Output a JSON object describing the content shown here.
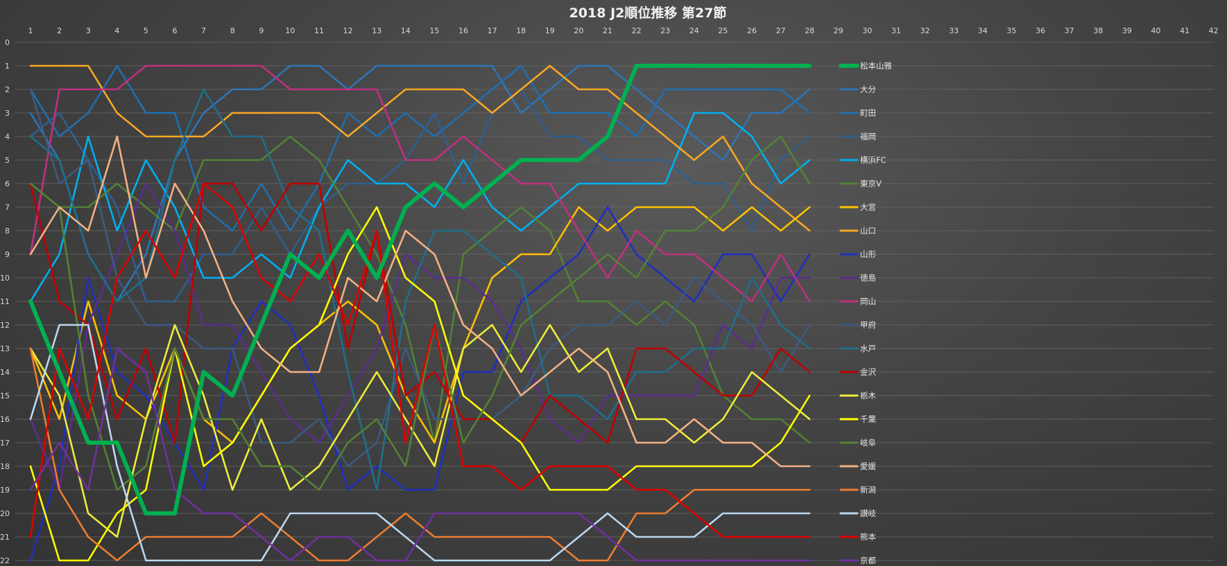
{
  "chart_data": {
    "type": "line",
    "title": "2018 J2順位推移 第27節",
    "x_ticks": [
      1,
      2,
      3,
      4,
      5,
      6,
      7,
      8,
      9,
      10,
      11,
      12,
      13,
      14,
      15,
      16,
      17,
      18,
      19,
      20,
      21,
      22,
      23,
      24,
      25,
      26,
      27,
      28,
      29,
      30,
      31,
      32,
      33,
      34,
      35,
      36,
      37,
      38,
      39,
      40,
      41,
      42
    ],
    "y_ticks": [
      0,
      1,
      2,
      3,
      4,
      5,
      6,
      7,
      8,
      9,
      10,
      11,
      12,
      13,
      14,
      15,
      16,
      17,
      18,
      19,
      20,
      21,
      22
    ],
    "xlim": [
      1,
      42
    ],
    "ylim": [
      0,
      22
    ],
    "y_inverted": true,
    "grid": true,
    "legend_position": "right",
    "x": [
      1,
      2,
      3,
      4,
      5,
      6,
      7,
      8,
      9,
      10,
      11,
      12,
      13,
      14,
      15,
      16,
      17,
      18,
      19,
      20,
      21,
      22,
      23,
      24,
      25,
      26,
      27,
      28
    ],
    "series": [
      {
        "name": "松本山雅",
        "color": "#00b050",
        "bold": true,
        "values": [
          11,
          14,
          17,
          17,
          20,
          20,
          14,
          15,
          12,
          9,
          10,
          8,
          10,
          7,
          6,
          7,
          6,
          5,
          5,
          5,
          4,
          1,
          1,
          1,
          1,
          1,
          1,
          1
        ]
      },
      {
        "name": "大分",
        "color": "#2e75b6",
        "bold": false,
        "values": [
          3,
          5,
          9,
          11,
          9,
          5,
          3,
          2,
          2,
          1,
          1,
          2,
          1,
          1,
          1,
          1,
          1,
          3,
          2,
          1,
          1,
          2,
          3,
          4,
          5,
          3,
          3,
          2
        ]
      },
      {
        "name": "町田",
        "color": "#1f6fb0",
        "bold": false,
        "values": [
          2,
          4,
          3,
          1,
          3,
          3,
          7,
          8,
          6,
          8,
          6,
          3,
          4,
          3,
          4,
          3,
          2,
          1,
          3,
          3,
          3,
          4,
          2,
          2,
          2,
          2,
          2,
          3
        ]
      },
      {
        "name": "福岡",
        "color": "#2f5f8f",
        "bold": false,
        "values": [
          4,
          3,
          5,
          7,
          11,
          11,
          9,
          9,
          7,
          9,
          7,
          6,
          6,
          5,
          3,
          6,
          3,
          2,
          4,
          4,
          5,
          5,
          5,
          6,
          6,
          8,
          5,
          4
        ]
      },
      {
        "name": "横浜FC",
        "color": "#00b0f0",
        "bold": false,
        "values": [
          11,
          9,
          4,
          8,
          5,
          7,
          10,
          10,
          9,
          10,
          7,
          5,
          6,
          6,
          7,
          5,
          7,
          8,
          7,
          6,
          6,
          6,
          6,
          3,
          3,
          4,
          6,
          5
        ]
      },
      {
        "name": "東京V",
        "color": "#538135",
        "bold": false,
        "values": [
          6,
          7,
          7,
          6,
          7,
          8,
          5,
          5,
          5,
          4,
          5,
          7,
          9,
          12,
          17,
          9,
          8,
          7,
          8,
          11,
          11,
          12,
          11,
          12,
          15,
          16,
          16,
          17
        ]
      },
      {
        "name": "大宮",
        "color": "#ffc000",
        "bold": false,
        "values": [
          13,
          16,
          11,
          15,
          16,
          13,
          16,
          17,
          15,
          13,
          12,
          11,
          12,
          15,
          17,
          13,
          10,
          9,
          9,
          7,
          8,
          7,
          7,
          7,
          8,
          7,
          8,
          7
        ]
      },
      {
        "name": "山口",
        "color": "#f7a823",
        "bold": false,
        "values": [
          1,
          1,
          1,
          3,
          4,
          4,
          4,
          3,
          3,
          3,
          3,
          4,
          3,
          2,
          2,
          2,
          3,
          2,
          1,
          2,
          2,
          3,
          4,
          5,
          4,
          6,
          7,
          8
        ]
      },
      {
        "name": "山形",
        "color": "#1f2fbf",
        "bold": false,
        "values": [
          22,
          18,
          10,
          14,
          15,
          17,
          19,
          13,
          11,
          12,
          15,
          19,
          18,
          19,
          19,
          14,
          14,
          11,
          10,
          9,
          7,
          9,
          10,
          11,
          9,
          9,
          11,
          9
        ]
      },
      {
        "name": "徳島",
        "color": "#5b2d8f",
        "bold": false,
        "values": [
          16,
          19,
          12,
          9,
          6,
          8,
          12,
          12,
          14,
          16,
          17,
          15,
          13,
          9,
          10,
          10,
          11,
          13,
          16,
          17,
          15,
          15,
          15,
          15,
          12,
          13,
          10,
          10
        ]
      },
      {
        "name": "岡山",
        "color": "#c0307f",
        "bold": false,
        "values": [
          9,
          2,
          2,
          2,
          1,
          1,
          1,
          1,
          1,
          2,
          2,
          2,
          2,
          5,
          5,
          4,
          5,
          6,
          6,
          8,
          10,
          8,
          9,
          9,
          10,
          11,
          9,
          11
        ]
      },
      {
        "name": "甲府",
        "color": "#3d5a80",
        "bold": false,
        "values": [
          2,
          6,
          5,
          10,
          12,
          12,
          13,
          13,
          17,
          17,
          16,
          18,
          17,
          13,
          16,
          16,
          16,
          15,
          13,
          12,
          12,
          11,
          12,
          10,
          11,
          12,
          14,
          12
        ]
      },
      {
        "name": "水戸",
        "color": "#1f6f8b",
        "bold": false,
        "values": [
          4,
          5,
          9,
          11,
          10,
          5,
          2,
          4,
          4,
          7,
          8,
          14,
          19,
          11,
          8,
          8,
          9,
          10,
          15,
          15,
          16,
          14,
          14,
          13,
          13,
          10,
          12,
          13
        ]
      },
      {
        "name": "金沢",
        "color": "#c00000",
        "bold": false,
        "values": [
          6,
          11,
          12,
          16,
          13,
          17,
          6,
          6,
          8,
          6,
          6,
          13,
          8,
          15,
          14,
          16,
          16,
          17,
          15,
          16,
          17,
          13,
          13,
          14,
          15,
          15,
          13,
          14
        ]
      },
      {
        "name": "栃木",
        "color": "#eded3b",
        "bold": false,
        "values": [
          13,
          15,
          20,
          21,
          16,
          12,
          15,
          19,
          16,
          19,
          18,
          16,
          14,
          16,
          18,
          13,
          12,
          14,
          12,
          14,
          13,
          16,
          16,
          17,
          16,
          14,
          15,
          16
        ]
      },
      {
        "name": "千葉",
        "color": "#ffff00",
        "bold": false,
        "values": [
          18,
          22,
          22,
          20,
          19,
          13,
          18,
          17,
          15,
          13,
          12,
          9,
          7,
          10,
          11,
          15,
          16,
          17,
          19,
          19,
          19,
          18,
          18,
          18,
          18,
          18,
          17,
          15
        ]
      },
      {
        "name": "岐阜",
        "color": "#548235",
        "bold": false,
        "values": [
          6,
          7,
          15,
          19,
          18,
          13,
          16,
          16,
          18,
          18,
          19,
          17,
          16,
          18,
          12,
          17,
          15,
          12,
          11,
          10,
          9,
          10,
          8,
          8,
          7,
          5,
          4,
          6
        ]
      },
      {
        "name": "愛媛",
        "color": "#f4b183",
        "bold": false,
        "values": [
          9,
          7,
          8,
          4,
          10,
          6,
          8,
          11,
          13,
          14,
          14,
          10,
          11,
          8,
          9,
          12,
          13,
          15,
          14,
          13,
          14,
          17,
          17,
          16,
          17,
          17,
          18,
          18
        ]
      },
      {
        "name": "新潟",
        "color": "#ed7d31",
        "bold": false,
        "values": [
          13,
          19,
          21,
          22,
          21,
          21,
          21,
          21,
          20,
          21,
          22,
          22,
          21,
          20,
          21,
          21,
          21,
          21,
          21,
          22,
          22,
          20,
          20,
          19,
          19,
          19,
          19,
          19
        ]
      },
      {
        "name": "讃岐",
        "color": "#bdd7ee",
        "bold": false,
        "values": [
          16,
          12,
          12,
          18,
          22,
          22,
          22,
          22,
          22,
          20,
          20,
          20,
          20,
          21,
          22,
          22,
          22,
          22,
          22,
          21,
          20,
          21,
          21,
          21,
          20,
          20,
          20,
          20
        ]
      },
      {
        "name": "熊本",
        "color": "#e00000",
        "bold": false,
        "values": [
          21,
          13,
          16,
          10,
          8,
          10,
          6,
          7,
          10,
          11,
          9,
          12,
          8,
          17,
          12,
          18,
          18,
          19,
          18,
          18,
          18,
          19,
          19,
          20,
          21,
          21,
          21,
          21
        ]
      },
      {
        "name": "京都",
        "color": "#7030a0",
        "bold": false,
        "values": [
          19,
          17,
          19,
          13,
          14,
          19,
          20,
          20,
          21,
          22,
          21,
          21,
          22,
          22,
          20,
          20,
          20,
          20,
          20,
          20,
          21,
          22,
          22,
          22,
          22,
          22,
          22,
          22
        ]
      }
    ]
  }
}
